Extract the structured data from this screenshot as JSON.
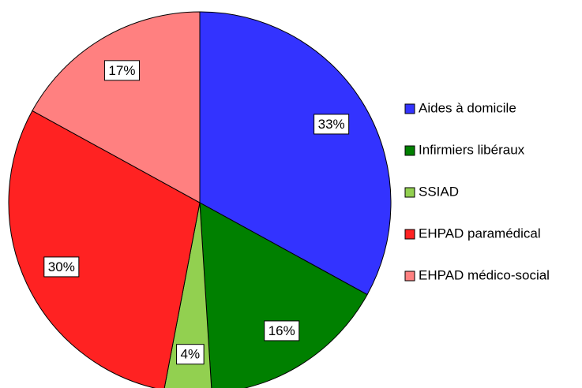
{
  "chart_data": {
    "type": "pie",
    "categories": [
      "Aides à domicile",
      "Infirmiers libéraux",
      "SSIAD",
      "EHPAD paramédical",
      "EHPAD médico-social"
    ],
    "values": [
      33,
      16,
      4,
      30,
      17
    ],
    "value_labels": [
      "33%",
      "16%",
      "4%",
      "30%",
      "17%"
    ],
    "colors": [
      "#3333ff",
      "#008000",
      "#92d050",
      "#ff2222",
      "#ff8080"
    ],
    "legend": "right"
  }
}
